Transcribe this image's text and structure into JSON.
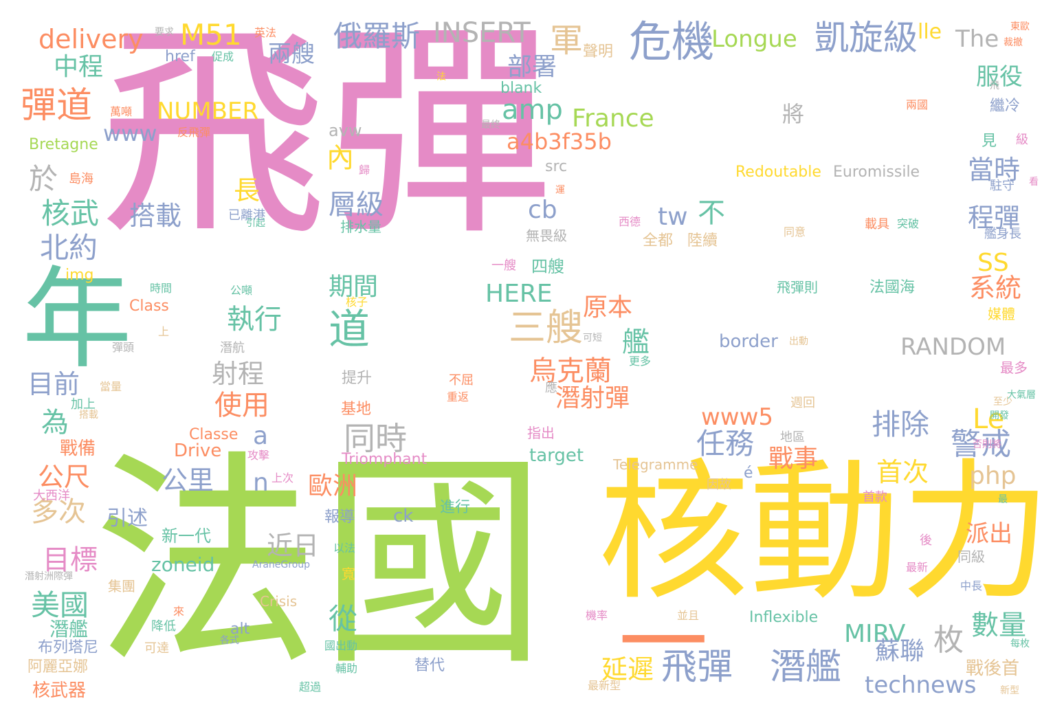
{
  "palette": {
    "pink": "#e58bc6",
    "green": "#a6d854",
    "yellow": "#ffd92f",
    "teal": "#66c2a5",
    "orange": "#fc8d62",
    "blue": "#8da0cb",
    "tan": "#e5c494",
    "gray": "#b3b3b3"
  },
  "words": [
    {
      "text": "飛彈",
      "color": "pink"
    },
    {
      "text": "法國",
      "color": "green"
    },
    {
      "text": "核動力",
      "color": "yellow"
    },
    {
      "text": "年",
      "color": "teal"
    },
    {
      "text": "一",
      "color": "orange"
    },
    {
      "text": "危機",
      "color": "blue"
    },
    {
      "text": "凱旋級",
      "color": "blue"
    },
    {
      "text": "飛彈",
      "color": "blue"
    },
    {
      "text": "潛艦",
      "color": "blue"
    },
    {
      "text": "彈道",
      "color": "orange"
    },
    {
      "text": "M51",
      "color": "yellow"
    },
    {
      "text": "delivery",
      "color": "orange"
    },
    {
      "text": "俄羅斯",
      "color": "blue"
    },
    {
      "text": "INSERT",
      "color": "gray"
    },
    {
      "text": "軍",
      "color": "tan"
    },
    {
      "text": "Longue",
      "color": "green"
    },
    {
      "text": "lle",
      "color": "yellow"
    },
    {
      "text": "The",
      "color": "gray"
    },
    {
      "text": "兩艘",
      "color": "blue"
    },
    {
      "text": "中程",
      "color": "teal"
    },
    {
      "text": "部署",
      "color": "blue"
    },
    {
      "text": "服役",
      "color": "teal"
    },
    {
      "text": "amp",
      "color": "teal"
    },
    {
      "text": "France",
      "color": "green"
    },
    {
      "text": "NUMBER",
      "color": "yellow"
    },
    {
      "text": "www",
      "color": "blue"
    },
    {
      "text": "a4b3f35b",
      "color": "orange"
    },
    {
      "text": "將",
      "color": "gray"
    },
    {
      "text": "內",
      "color": "yellow"
    },
    {
      "text": "於",
      "color": "gray"
    },
    {
      "text": "核武",
      "color": "teal"
    },
    {
      "text": "北約",
      "color": "blue"
    },
    {
      "text": "長",
      "color": "yellow"
    },
    {
      "text": "層級",
      "color": "blue"
    },
    {
      "text": "搭載",
      "color": "blue"
    },
    {
      "text": "cb",
      "color": "blue"
    },
    {
      "text": "tw",
      "color": "blue"
    },
    {
      "text": "不",
      "color": "teal"
    },
    {
      "text": "當時",
      "color": "blue"
    },
    {
      "text": "程彈",
      "color": "blue"
    },
    {
      "text": "SS",
      "color": "yellow"
    },
    {
      "text": "系統",
      "color": "orange"
    },
    {
      "text": "HERE",
      "color": "teal"
    },
    {
      "text": "期間",
      "color": "teal"
    },
    {
      "text": "道",
      "color": "teal"
    },
    {
      "text": "三艘",
      "color": "tan"
    },
    {
      "text": "原本",
      "color": "orange"
    },
    {
      "text": "執行",
      "color": "teal"
    },
    {
      "text": "艦",
      "color": "teal"
    },
    {
      "text": "RANDOM",
      "color": "gray"
    },
    {
      "text": "射程",
      "color": "gray"
    },
    {
      "text": "目前",
      "color": "blue"
    },
    {
      "text": "烏克蘭",
      "color": "orange"
    },
    {
      "text": "潛射彈",
      "color": "orange"
    },
    {
      "text": "同時",
      "color": "gray"
    },
    {
      "text": "使用",
      "color": "orange"
    },
    {
      "text": "為",
      "color": "teal"
    },
    {
      "text": "a",
      "color": "blue"
    },
    {
      "text": "www5",
      "color": "orange"
    },
    {
      "text": "Le",
      "color": "yellow"
    },
    {
      "text": "排除",
      "color": "blue"
    },
    {
      "text": "任務",
      "color": "blue"
    },
    {
      "text": "警戒",
      "color": "blue"
    },
    {
      "text": "戰事",
      "color": "orange"
    },
    {
      "text": "公尺",
      "color": "orange"
    },
    {
      "text": "公里",
      "color": "blue"
    },
    {
      "text": "n",
      "color": "blue"
    },
    {
      "text": "歐洲",
      "color": "orange"
    },
    {
      "text": "php",
      "color": "tan"
    },
    {
      "text": "首次",
      "color": "yellow"
    },
    {
      "text": "多次",
      "color": "tan"
    },
    {
      "text": "近日",
      "color": "gray"
    },
    {
      "text": "目標",
      "color": "pink"
    },
    {
      "text": "派出",
      "color": "orange"
    },
    {
      "text": "美國",
      "color": "teal"
    },
    {
      "text": "zoneid",
      "color": "teal"
    },
    {
      "text": "從",
      "color": "teal"
    },
    {
      "text": "MIRV",
      "color": "teal"
    },
    {
      "text": "枚",
      "color": "gray"
    },
    {
      "text": "數量",
      "color": "teal"
    },
    {
      "text": "蘇聯",
      "color": "blue"
    },
    {
      "text": "延遲",
      "color": "yellow"
    },
    {
      "text": "technews",
      "color": "blue"
    },
    {
      "text": "核武器",
      "color": "orange"
    },
    {
      "text": "潛艦",
      "color": "teal"
    },
    {
      "text": "布列塔尼",
      "color": "blue"
    },
    {
      "text": "阿麗亞娜",
      "color": "tan"
    },
    {
      "text": "引述",
      "color": "blue"
    },
    {
      "text": "新一代",
      "color": "teal"
    },
    {
      "text": "ck",
      "color": "blue"
    },
    {
      "text": "進行",
      "color": "teal"
    },
    {
      "text": "報導",
      "color": "blue"
    },
    {
      "text": "Crisis",
      "color": "tan"
    },
    {
      "text": "Inflexible",
      "color": "teal"
    },
    {
      "text": "alt",
      "color": "blue"
    },
    {
      "text": "替代",
      "color": "blue"
    },
    {
      "text": "戰後首",
      "color": "tan"
    },
    {
      "text": "Triomphant",
      "color": "pink"
    },
    {
      "text": "Telegramme",
      "color": "tan"
    },
    {
      "text": "target",
      "color": "teal"
    },
    {
      "text": "Drive",
      "color": "orange"
    },
    {
      "text": "Classe",
      "color": "orange"
    },
    {
      "text": "戰備",
      "color": "orange"
    },
    {
      "text": "加上",
      "color": "teal"
    },
    {
      "text": "提升",
      "color": "gray"
    },
    {
      "text": "基地",
      "color": "orange"
    },
    {
      "text": "border",
      "color": "blue"
    },
    {
      "text": "Redoutable",
      "color": "yellow"
    },
    {
      "text": "Euromissile",
      "color": "gray"
    },
    {
      "text": "Bretagne",
      "color": "green"
    },
    {
      "text": "img",
      "color": "yellow"
    },
    {
      "text": "Class",
      "color": "orange"
    },
    {
      "text": "href",
      "color": "blue"
    },
    {
      "text": "blank",
      "color": "teal"
    },
    {
      "text": "avw",
      "color": "gray"
    },
    {
      "text": "src",
      "color": "gray"
    },
    {
      "text": "四艘",
      "color": "teal"
    },
    {
      "text": "全都",
      "color": "tan"
    },
    {
      "text": "陸續",
      "color": "tan"
    },
    {
      "text": "無畏級",
      "color": "gray"
    },
    {
      "text": "排水量",
      "color": "teal"
    },
    {
      "text": "聲明",
      "color": "tan"
    },
    {
      "text": "英法",
      "color": "orange"
    },
    {
      "text": "要求",
      "color": "gray"
    },
    {
      "text": "促成",
      "color": "teal"
    },
    {
      "text": "島海",
      "color": "orange"
    },
    {
      "text": "已離港",
      "color": "blue"
    },
    {
      "text": "繼冷",
      "color": "blue"
    },
    {
      "text": "見",
      "color": "teal"
    },
    {
      "text": "級",
      "color": "pink"
    },
    {
      "text": "駐守",
      "color": "blue"
    },
    {
      "text": "艦身長",
      "color": "blue"
    },
    {
      "text": "飛彈則",
      "color": "teal"
    },
    {
      "text": "法國海",
      "color": "teal"
    },
    {
      "text": "媒體",
      "color": "yellow"
    },
    {
      "text": "最多",
      "color": "pink"
    },
    {
      "text": "指出",
      "color": "pink"
    },
    {
      "text": "應",
      "color": "gray"
    },
    {
      "text": "週回",
      "color": "tan"
    },
    {
      "text": "至少",
      "color": "tan"
    },
    {
      "text": "開發",
      "color": "teal"
    },
    {
      "text": "大氣層",
      "color": "teal"
    },
    {
      "text": "否則將",
      "color": "pink"
    },
    {
      "text": "首款",
      "color": "pink"
    },
    {
      "text": "同級",
      "color": "gray"
    },
    {
      "text": "因故",
      "color": "tan"
    },
    {
      "text": "最新",
      "color": "pink"
    },
    {
      "text": "中長",
      "color": "blue"
    },
    {
      "text": "每枚",
      "color": "teal"
    },
    {
      "text": "新型",
      "color": "tan"
    },
    {
      "text": "最新型",
      "color": "tan"
    },
    {
      "text": "並且",
      "color": "tan"
    },
    {
      "text": "機率",
      "color": "pink"
    },
    {
      "text": "寬",
      "color": "yellow"
    },
    {
      "text": "以法",
      "color": "teal"
    },
    {
      "text": "國出動",
      "color": "teal"
    },
    {
      "text": "輔助",
      "color": "teal"
    },
    {
      "text": "超過",
      "color": "teal"
    },
    {
      "text": "各式",
      "color": "blue"
    },
    {
      "text": "降低",
      "color": "teal"
    },
    {
      "text": "可達",
      "color": "tan"
    },
    {
      "text": "潛射洲際彈",
      "color": "gray"
    },
    {
      "text": "集團",
      "color": "tan"
    },
    {
      "text": "AraneGroup",
      "color": "blue"
    },
    {
      "text": "上次",
      "color": "pink"
    },
    {
      "text": "大西洋",
      "color": "pink"
    },
    {
      "text": "攻擊",
      "color": "pink"
    },
    {
      "text": "地區",
      "color": "gray"
    },
    {
      "text": "重返",
      "color": "orange"
    },
    {
      "text": "不屈",
      "color": "orange"
    },
    {
      "text": "當量",
      "color": "tan"
    },
    {
      "text": "搭載",
      "color": "tan"
    },
    {
      "text": "彈頭",
      "color": "gray"
    },
    {
      "text": "潛航",
      "color": "gray"
    },
    {
      "text": "可短",
      "color": "gray"
    },
    {
      "text": "更多",
      "color": "teal"
    },
    {
      "text": "出動",
      "color": "tan"
    },
    {
      "text": "核子",
      "color": "yellow"
    },
    {
      "text": "公噸",
      "color": "teal"
    },
    {
      "text": "時間",
      "color": "teal"
    },
    {
      "text": "上",
      "color": "tan"
    },
    {
      "text": "一艘",
      "color": "pink"
    },
    {
      "text": "引起",
      "color": "teal"
    },
    {
      "text": "西德",
      "color": "pink"
    },
    {
      "text": "運",
      "color": "orange"
    },
    {
      "text": "最大",
      "color": "pink"
    },
    {
      "text": "歸",
      "color": "pink"
    },
    {
      "text": "反飛彈",
      "color": "orange"
    },
    {
      "text": "最終",
      "color": "gray"
    },
    {
      "text": "萬噸",
      "color": "orange"
    },
    {
      "text": "法",
      "color": "yellow"
    },
    {
      "text": "同意",
      "color": "tan"
    },
    {
      "text": "載具",
      "color": "orange"
    },
    {
      "text": "突破",
      "color": "teal"
    },
    {
      "text": "兩國",
      "color": "orange"
    },
    {
      "text": "東歐",
      "color": "orange"
    },
    {
      "text": "裁撤",
      "color": "orange"
    },
    {
      "text": "看",
      "color": "pink"
    },
    {
      "text": "後",
      "color": "pink"
    },
    {
      "text": "飛",
      "color": "gray"
    },
    {
      "text": "é",
      "color": "blue"
    },
    {
      "text": "來",
      "color": "orange"
    },
    {
      "text": "最",
      "color": "teal"
    }
  ]
}
